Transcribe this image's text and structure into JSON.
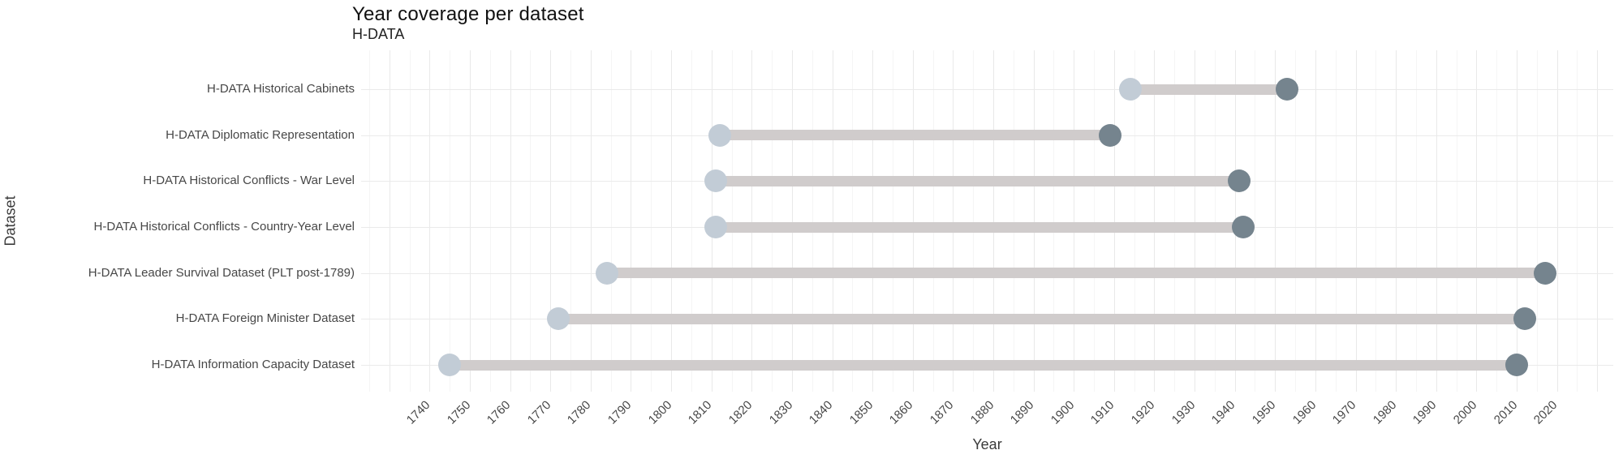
{
  "header": {
    "title": "Year coverage per dataset",
    "subtitle": "H-DATA"
  },
  "chart_data": {
    "type": "dumbbell",
    "orientation": "horizontal",
    "title": "Year coverage per dataset",
    "subtitle": "H-DATA",
    "xlabel": "Year",
    "ylabel": "Dataset",
    "grid": "major and minor vertical gridlines, horizontal gridline per category",
    "legend": "none",
    "x_domain": [
      1723,
      2034
    ],
    "x_ticks": [
      1740,
      1750,
      1760,
      1770,
      1780,
      1790,
      1800,
      1810,
      1820,
      1830,
      1840,
      1850,
      1860,
      1870,
      1880,
      1890,
      1900,
      1910,
      1920,
      1930,
      1940,
      1950,
      1960,
      1970,
      1980,
      1990,
      2000,
      2010,
      2020
    ],
    "categories": [
      "H-DATA Historical Cabinets",
      "H-DATA Diplomatic Representation",
      "H-DATA Historical Conflicts - War Level",
      "H-DATA Historical Conflicts - Country-Year Level",
      "H-DATA Leader Survival Dataset (PLT post-1789)",
      "H-DATA Foreign Minister Dataset",
      "H-DATA Information Capacity Dataset"
    ],
    "datasets": [
      {
        "label": "H-DATA Historical Cabinets",
        "start": 1914,
        "end": 1953
      },
      {
        "label": "H-DATA Diplomatic Representation",
        "start": 1812,
        "end": 1909
      },
      {
        "label": "H-DATA Historical Conflicts - War Level",
        "start": 1811,
        "end": 1941
      },
      {
        "label": "H-DATA Historical Conflicts - Country-Year Level",
        "start": 1811,
        "end": 1942
      },
      {
        "label": "H-DATA Leader Survival Dataset (PLT post-1789)",
        "start": 1784,
        "end": 2017
      },
      {
        "label": "H-DATA Foreign Minister Dataset",
        "start": 1772,
        "end": 2012
      },
      {
        "label": "H-DATA Information Capacity Dataset",
        "start": 1745,
        "end": 2010
      }
    ]
  },
  "colors": {
    "start_dot": "#c2ccd6",
    "end_dot": "#75848e",
    "bar": "#d0cccc",
    "grid_major": "#e9e9e9",
    "grid_minor": "#f5f5f5",
    "tick_text": "#474747",
    "title_text": "#111111"
  }
}
